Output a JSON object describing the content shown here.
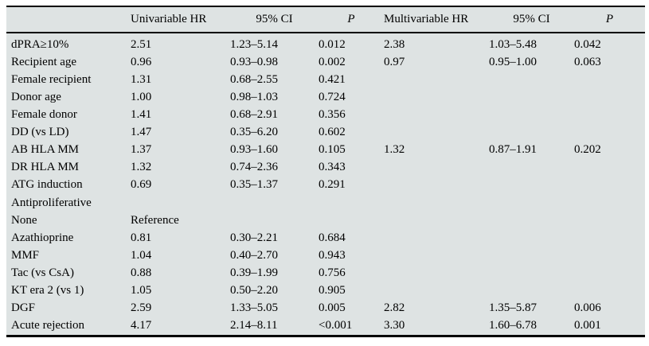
{
  "colors": {
    "table_background": "#dee3e3",
    "rule": "#000000",
    "page_background": "#ffffff",
    "text": "#000000"
  },
  "table": {
    "header": [
      "",
      "Univariable HR",
      "95% CI",
      "P",
      "Multivariable HR",
      "95% CI",
      "P"
    ],
    "rows": [
      [
        "dPRA≥10%",
        "2.51",
        "1.23–5.14",
        "0.012",
        "2.38",
        "1.03–5.48",
        "0.042"
      ],
      [
        "Recipient age",
        "0.96",
        "0.93–0.98",
        "0.002",
        "0.97",
        "0.95–1.00",
        "0.063"
      ],
      [
        "Female recipient",
        "1.31",
        "0.68–2.55",
        "0.421",
        "",
        "",
        ""
      ],
      [
        "Donor age",
        "1.00",
        "0.98–1.03",
        "0.724",
        "",
        "",
        ""
      ],
      [
        "Female donor",
        "1.41",
        "0.68–2.91",
        "0.356",
        "",
        "",
        ""
      ],
      [
        "DD (vs LD)",
        "1.47",
        "0.35–6.20",
        "0.602",
        "",
        "",
        ""
      ],
      [
        "AB HLA MM",
        "1.37",
        "0.93–1.60",
        "0.105",
        "1.32",
        "0.87–1.91",
        "0.202"
      ],
      [
        "DR HLA MM",
        "1.32",
        "0.74–2.36",
        "0.343",
        "",
        "",
        ""
      ],
      [
        "ATG induction",
        "0.69",
        "0.35–1.37",
        "0.291",
        "",
        "",
        ""
      ],
      [
        "Antiproliferative",
        "",
        "",
        "",
        "",
        "",
        ""
      ],
      [
        "None",
        "Reference",
        "",
        "",
        "",
        "",
        ""
      ],
      [
        "Azathioprine",
        "0.81",
        "0.30–2.21",
        "0.684",
        "",
        "",
        ""
      ],
      [
        "MMF",
        "1.04",
        "0.40–2.70",
        "0.943",
        "",
        "",
        ""
      ],
      [
        "Tac (vs CsA)",
        "0.88",
        "0.39–1.99",
        "0.756",
        "",
        "",
        ""
      ],
      [
        "KT era 2 (vs 1)",
        "1.05",
        "0.50–2.20",
        "0.905",
        "",
        "",
        ""
      ],
      [
        "DGF",
        "2.59",
        "1.33–5.05",
        "0.005",
        "2.82",
        "1.35–5.87",
        "0.006"
      ],
      [
        "Acute rejection",
        "4.17",
        "2.14–8.11",
        "<0.001",
        "3.30",
        "1.60–6.78",
        "0.001"
      ]
    ]
  }
}
